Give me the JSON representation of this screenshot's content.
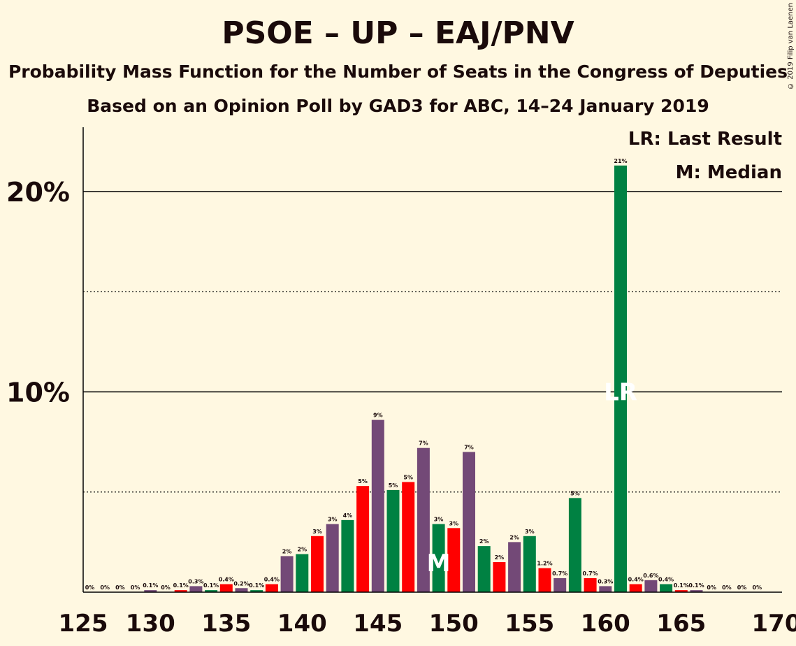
{
  "header": {
    "title": "PSOE – UP – EAJ/PNV",
    "subtitle1": "Probability Mass Function for the Number of Seats in the Congress of Deputies",
    "subtitle2": "Based on an Opinion Poll by GAD3 for ABC, 14–24 January 2019",
    "copyright": "© 2019 Filip van Laenen"
  },
  "legend": {
    "last_result": "LR: Last Result",
    "median": "M: Median"
  },
  "colors": {
    "background": "#fff8e1",
    "red": "#ff0000",
    "purple": "#734977",
    "green": "#008142",
    "text": "#1a0a0a"
  },
  "chart_data": {
    "type": "bar",
    "title": "PSOE – UP – EAJ/PNV",
    "xlabel": "",
    "ylabel": "",
    "xlim": [
      125,
      170
    ],
    "ylim": [
      0,
      23
    ],
    "x_ticks": [
      125,
      130,
      135,
      140,
      145,
      150,
      155,
      160,
      165,
      170
    ],
    "y_ticks": [
      {
        "value": 10,
        "label": "10%"
      },
      {
        "value": 20,
        "label": "20%"
      }
    ],
    "minor_gridlines": [
      5,
      15
    ],
    "median": 149,
    "last_result": 161,
    "median_marker": "M",
    "last_result_marker": "LR",
    "bars": [
      {
        "x": 126,
        "value": 0.0,
        "label": "0%",
        "color": "red"
      },
      {
        "x": 127,
        "value": 0.0,
        "label": "0%",
        "color": "purple"
      },
      {
        "x": 128,
        "value": 0.0,
        "label": "0%",
        "color": "green"
      },
      {
        "x": 129,
        "value": 0.0,
        "label": "0%",
        "color": "red"
      },
      {
        "x": 130,
        "value": 0.1,
        "label": "0.1%",
        "color": "purple"
      },
      {
        "x": 131,
        "value": 0.0,
        "label": "0%",
        "color": "green"
      },
      {
        "x": 132,
        "value": 0.1,
        "label": "0.1%",
        "color": "red"
      },
      {
        "x": 133,
        "value": 0.3,
        "label": "0.3%",
        "color": "purple"
      },
      {
        "x": 134,
        "value": 0.1,
        "label": "0.1%",
        "color": "green"
      },
      {
        "x": 135,
        "value": 0.4,
        "label": "0.4%",
        "color": "red"
      },
      {
        "x": 136,
        "value": 0.2,
        "label": "0.2%",
        "color": "purple"
      },
      {
        "x": 137,
        "value": 0.1,
        "label": "0.1%",
        "color": "green"
      },
      {
        "x": 138,
        "value": 0.4,
        "label": "0.4%",
        "color": "red"
      },
      {
        "x": 139,
        "value": 1.8,
        "label": "2%",
        "color": "purple"
      },
      {
        "x": 140,
        "value": 1.9,
        "label": "2%",
        "color": "green"
      },
      {
        "x": 141,
        "value": 2.8,
        "label": "3%",
        "color": "red"
      },
      {
        "x": 142,
        "value": 3.4,
        "label": "3%",
        "color": "purple"
      },
      {
        "x": 143,
        "value": 3.6,
        "label": "4%",
        "color": "green"
      },
      {
        "x": 144,
        "value": 5.3,
        "label": "5%",
        "color": "red"
      },
      {
        "x": 145,
        "value": 8.6,
        "label": "9%",
        "color": "purple"
      },
      {
        "x": 146,
        "value": 5.1,
        "label": "5%",
        "color": "green"
      },
      {
        "x": 147,
        "value": 5.5,
        "label": "5%",
        "color": "red"
      },
      {
        "x": 148,
        "value": 7.2,
        "label": "7%",
        "color": "purple"
      },
      {
        "x": 149,
        "value": 3.4,
        "label": "3%",
        "color": "green"
      },
      {
        "x": 150,
        "value": 3.2,
        "label": "3%",
        "color": "red"
      },
      {
        "x": 151,
        "value": 7.0,
        "label": "7%",
        "color": "purple"
      },
      {
        "x": 152,
        "value": 2.3,
        "label": "2%",
        "color": "green"
      },
      {
        "x": 153,
        "value": 1.5,
        "label": "2%",
        "color": "red"
      },
      {
        "x": 154,
        "value": 2.5,
        "label": "2%",
        "color": "purple"
      },
      {
        "x": 155,
        "value": 2.8,
        "label": "3%",
        "color": "green"
      },
      {
        "x": 156,
        "value": 1.2,
        "label": "1.2%",
        "color": "red"
      },
      {
        "x": 157,
        "value": 0.7,
        "label": "0.7%",
        "color": "purple"
      },
      {
        "x": 158,
        "value": 4.7,
        "label": "5%",
        "color": "green"
      },
      {
        "x": 159,
        "value": 0.7,
        "label": "0.7%",
        "color": "red"
      },
      {
        "x": 160,
        "value": 0.3,
        "label": "0.3%",
        "color": "purple"
      },
      {
        "x": 161,
        "value": 21.3,
        "label": "21%",
        "color": "green"
      },
      {
        "x": 162,
        "value": 0.4,
        "label": "0.4%",
        "color": "red"
      },
      {
        "x": 163,
        "value": 0.6,
        "label": "0.6%",
        "color": "purple"
      },
      {
        "x": 164,
        "value": 0.4,
        "label": "0.4%",
        "color": "green"
      },
      {
        "x": 165,
        "value": 0.1,
        "label": "0.1%",
        "color": "red"
      },
      {
        "x": 166,
        "value": 0.1,
        "label": "0.1%",
        "color": "purple"
      },
      {
        "x": 167,
        "value": 0.0,
        "label": "0%",
        "color": "green"
      },
      {
        "x": 168,
        "value": 0.0,
        "label": "0%",
        "color": "red"
      },
      {
        "x": 169,
        "value": 0.0,
        "label": "0%",
        "color": "purple"
      },
      {
        "x": 170,
        "value": 0.0,
        "label": "0%",
        "color": "green"
      }
    ]
  }
}
